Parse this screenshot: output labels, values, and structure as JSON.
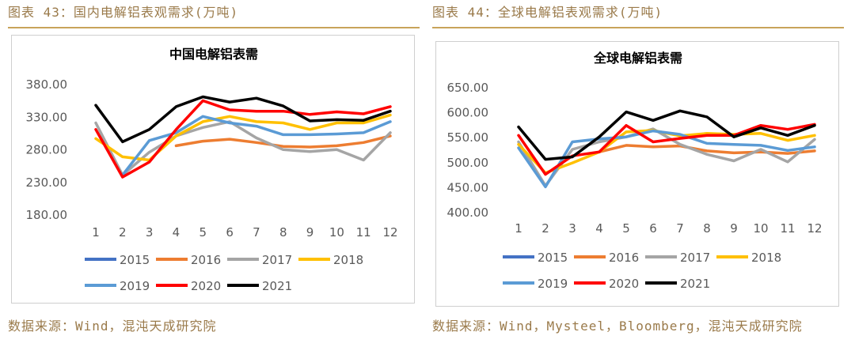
{
  "panels": {
    "left": {
      "figure_title": "图表 43：国内电解铝表观需求(万吨)",
      "source": "数据来源：Wind，混沌天成研究院"
    },
    "right": {
      "figure_title": "图表 44：全球电解铝表观需求(万吨)",
      "source": "数据来源：Wind，Mysteel，Bloomberg，混沌天成研究院"
    }
  },
  "chart_data": [
    {
      "type": "line",
      "title": "中国电解铝表需",
      "x": [
        "1",
        "2",
        "3",
        "4",
        "5",
        "6",
        "7",
        "8",
        "9",
        "10",
        "11",
        "12"
      ],
      "ylim": [
        180,
        380
      ],
      "yticks": [
        "180.00",
        "230.00",
        "280.00",
        "330.00",
        "380.00"
      ],
      "grid": false,
      "legend_position": "bottom",
      "series": [
        {
          "name": "2015",
          "color": "#4472c4",
          "values": [
            null,
            null,
            null,
            null,
            null,
            null,
            null,
            null,
            null,
            null,
            null,
            null
          ]
        },
        {
          "name": "2016",
          "color": "#ed7d31",
          "values": [
            null,
            null,
            null,
            285,
            292,
            295,
            290,
            284,
            283,
            285,
            290,
            300
          ]
        },
        {
          "name": "2017",
          "color": "#a5a5a5",
          "values": [
            320,
            240,
            275,
            300,
            313,
            322,
            297,
            279,
            276,
            279,
            263,
            305
          ]
        },
        {
          "name": "2018",
          "color": "#ffc000",
          "values": [
            296,
            268,
            263,
            300,
            322,
            330,
            322,
            320,
            310,
            320,
            320,
            332
          ]
        },
        {
          "name": "2019",
          "color": "#5b9bd5",
          "values": [
            null,
            240,
            293,
            305,
            330,
            320,
            315,
            302,
            302,
            303,
            305,
            322
          ]
        },
        {
          "name": "2020",
          "color": "#ff0000",
          "values": [
            310,
            237,
            260,
            310,
            354,
            340,
            338,
            338,
            333,
            337,
            334,
            345
          ]
        },
        {
          "name": "2021",
          "color": "#000000",
          "values": [
            347,
            291,
            310,
            345,
            360,
            352,
            358,
            346,
            323,
            325,
            324,
            338
          ]
        }
      ]
    },
    {
      "type": "line",
      "title": "全球电解铝表需",
      "x": [
        "1",
        "2",
        "3",
        "4",
        "5",
        "6",
        "7",
        "8",
        "9",
        "10",
        "11",
        "12"
      ],
      "ylim": [
        400,
        650
      ],
      "yticks": [
        "400.00",
        "450.00",
        "500.00",
        "550.00",
        "600.00",
        "650.00"
      ],
      "grid": false,
      "legend_position": "bottom",
      "series": [
        {
          "name": "2015",
          "color": "#4472c4",
          "values": [
            null,
            null,
            null,
            null,
            null,
            null,
            null,
            null,
            null,
            null,
            null,
            null
          ]
        },
        {
          "name": "2016",
          "color": "#ed7d31",
          "values": [
            null,
            null,
            null,
            520,
            533,
            530,
            532,
            522,
            518,
            520,
            517,
            522
          ]
        },
        {
          "name": "2017",
          "color": "#a5a5a5",
          "values": [
            540,
            452,
            525,
            540,
            550,
            566,
            535,
            515,
            502,
            525,
            500,
            545
          ]
        },
        {
          "name": "2018",
          "color": "#ffc000",
          "values": [
            535,
            478,
            498,
            520,
            560,
            563,
            552,
            557,
            555,
            557,
            543,
            553
          ]
        },
        {
          "name": "2019",
          "color": "#5b9bd5",
          "values": [
            528,
            450,
            540,
            546,
            550,
            562,
            555,
            537,
            535,
            533,
            523,
            530
          ]
        },
        {
          "name": "2020",
          "color": "#ff0000",
          "values": [
            553,
            475,
            512,
            520,
            573,
            540,
            547,
            553,
            553,
            573,
            565,
            575
          ]
        },
        {
          "name": "2021",
          "color": "#000000",
          "values": [
            570,
            505,
            510,
            550,
            600,
            583,
            602,
            590,
            550,
            568,
            553,
            573
          ]
        }
      ]
    }
  ]
}
